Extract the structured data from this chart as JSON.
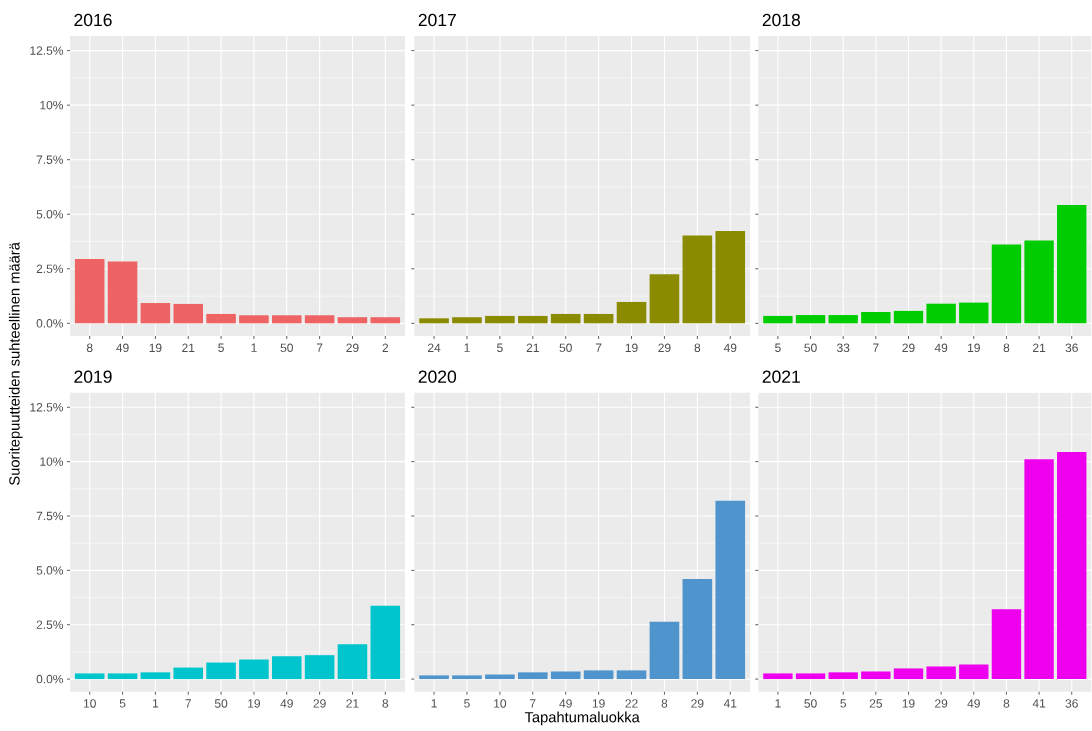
{
  "chart_data": [
    {
      "type": "bar",
      "title": "2016",
      "ylabel": "Suoritepuutteiden suhteellinen määrä",
      "categories": [
        "8",
        "49",
        "19",
        "21",
        "5",
        "1",
        "50",
        "7",
        "29",
        "2"
      ],
      "values": [
        2.95,
        2.84,
        0.93,
        0.89,
        0.43,
        0.37,
        0.37,
        0.37,
        0.28,
        0.28
      ],
      "color": "#EE6363",
      "ylim": [
        -0.58,
        13.17
      ],
      "yticks": [
        {
          "value": 0,
          "label": "0.0%"
        },
        {
          "value": 2.5,
          "label": "2.5%"
        },
        {
          "value": 5,
          "label": "5.0%"
        },
        {
          "value": 7.5,
          "label": "7.5%"
        },
        {
          "value": 10,
          "label": "10%"
        },
        {
          "value": 12.5,
          "label": "12.5%"
        }
      ],
      "grid": true
    },
    {
      "type": "bar",
      "title": "2017",
      "categories": [
        "24",
        "1",
        "5",
        "21",
        "50",
        "7",
        "19",
        "29",
        "8",
        "49"
      ],
      "values": [
        0.23,
        0.28,
        0.34,
        0.34,
        0.43,
        0.43,
        0.98,
        2.25,
        4.03,
        4.23
      ],
      "color": "#8B8B00",
      "ylim": [
        -0.58,
        13.17
      ],
      "yticks": [
        0,
        2.5,
        5,
        7.5,
        10,
        12.5
      ],
      "grid": true,
      "tick_labels": "x"
    },
    {
      "type": "bar",
      "title": "2018",
      "categories": [
        "5",
        "50",
        "33",
        "7",
        "29",
        "49",
        "19",
        "8",
        "21",
        "36"
      ],
      "values": [
        0.34,
        0.38,
        0.38,
        0.52,
        0.57,
        0.9,
        0.95,
        3.61,
        3.8,
        5.42
      ],
      "color": "#00CD00",
      "ylim": [
        -0.58,
        13.17
      ],
      "yticks": [
        0,
        2.5,
        5,
        7.5,
        10,
        12.5
      ],
      "grid": true,
      "tick_labels": "x"
    },
    {
      "type": "bar",
      "title": "2019",
      "categories": [
        "10",
        "5",
        "1",
        "7",
        "50",
        "19",
        "49",
        "29",
        "21",
        "8"
      ],
      "values": [
        0.26,
        0.26,
        0.31,
        0.53,
        0.76,
        0.9,
        1.05,
        1.1,
        1.6,
        3.37
      ],
      "color": "#00C5CD",
      "ylim": [
        -0.58,
        13.17
      ],
      "yticks": [
        {
          "value": 0,
          "label": "0.0%"
        },
        {
          "value": 2.5,
          "label": "2.5%"
        },
        {
          "value": 5,
          "label": "5.0%"
        },
        {
          "value": 7.5,
          "label": "7.5%"
        },
        {
          "value": 10,
          "label": "10%"
        },
        {
          "value": 12.5,
          "label": "12.5%"
        }
      ],
      "grid": true
    },
    {
      "type": "bar",
      "title": "2020",
      "xlabel": "Tapahtumaluokka",
      "categories": [
        "1",
        "5",
        "10",
        "7",
        "49",
        "19",
        "22",
        "8",
        "29",
        "41"
      ],
      "values": [
        0.17,
        0.17,
        0.21,
        0.31,
        0.35,
        0.4,
        0.4,
        2.64,
        4.6,
        8.2
      ],
      "color": "#4F94CD",
      "ylim": [
        -0.58,
        13.17
      ],
      "yticks": [
        0,
        2.5,
        5,
        7.5,
        10,
        12.5
      ],
      "grid": true,
      "tick_labels": "x"
    },
    {
      "type": "bar",
      "title": "2021",
      "categories": [
        "1",
        "50",
        "5",
        "25",
        "19",
        "29",
        "49",
        "8",
        "41",
        "36"
      ],
      "values": [
        0.26,
        0.26,
        0.31,
        0.35,
        0.49,
        0.58,
        0.67,
        3.21,
        10.11,
        10.44
      ],
      "color": "#EE00EE",
      "ylim": [
        -0.58,
        13.17
      ],
      "yticks": [
        0,
        2.5,
        5,
        7.5,
        10,
        12.5
      ],
      "grid": true,
      "tick_labels": "x"
    }
  ]
}
